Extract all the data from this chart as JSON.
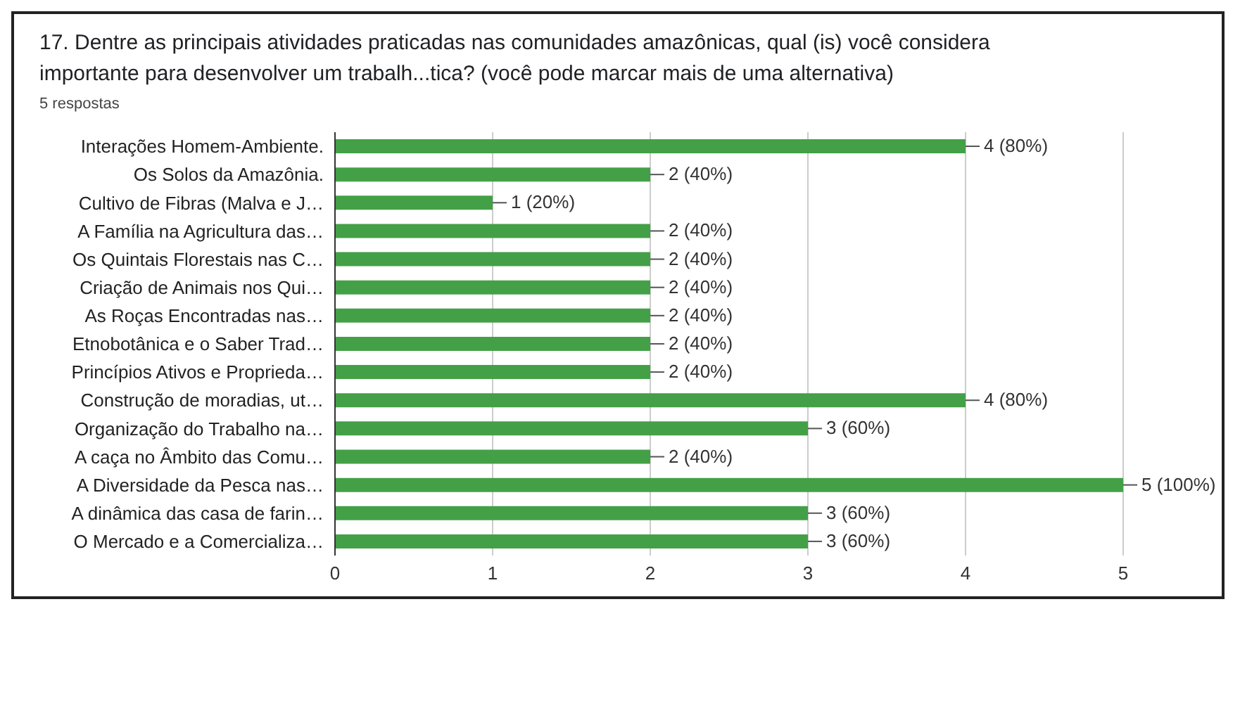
{
  "chart_data": {
    "type": "bar",
    "orientation": "horizontal",
    "title": "17. Dentre as principais atividades praticadas nas comunidades amazônicas, qual (is) você considera importante para desenvolver um trabalh...tica? (você pode marcar mais de uma alternativa)",
    "subtitle": "5 respostas",
    "categories": [
      "Interações Homem-Ambiente.",
      "Os Solos da Amazônia.",
      "Cultivo de Fibras (Malva e J…",
      "A Família na Agricultura das…",
      "Os Quintais Florestais nas C…",
      "Criação de Animais nos Qui…",
      "As Roças Encontradas nas…",
      "Etnobotânica e o Saber Trad…",
      "Princípios Ativos e Proprieda…",
      "Construção de moradias, ut…",
      "Organização do Trabalho na…",
      "A caça no Âmbito das Comu…",
      "A Diversidade da Pesca nas…",
      "A dinâmica das casa de farin…",
      "O Mercado e a Comercializa…"
    ],
    "values": [
      4,
      2,
      1,
      2,
      2,
      2,
      2,
      2,
      2,
      4,
      3,
      2,
      5,
      3,
      3
    ],
    "value_labels": [
      "4 (80%)",
      "2 (40%)",
      "1 (20%)",
      "2 (40%)",
      "2 (40%)",
      "2 (40%)",
      "2 (40%)",
      "2 (40%)",
      "2 (40%)",
      "4 (80%)",
      "3 (60%)",
      "2 (40%)",
      "5 (100%)",
      "3 (60%)",
      "3 (60%)"
    ],
    "color": "#43a047",
    "xlim": [
      0,
      5
    ],
    "xticks": [
      0,
      1,
      2,
      3,
      4,
      5
    ],
    "grid": "x"
  }
}
